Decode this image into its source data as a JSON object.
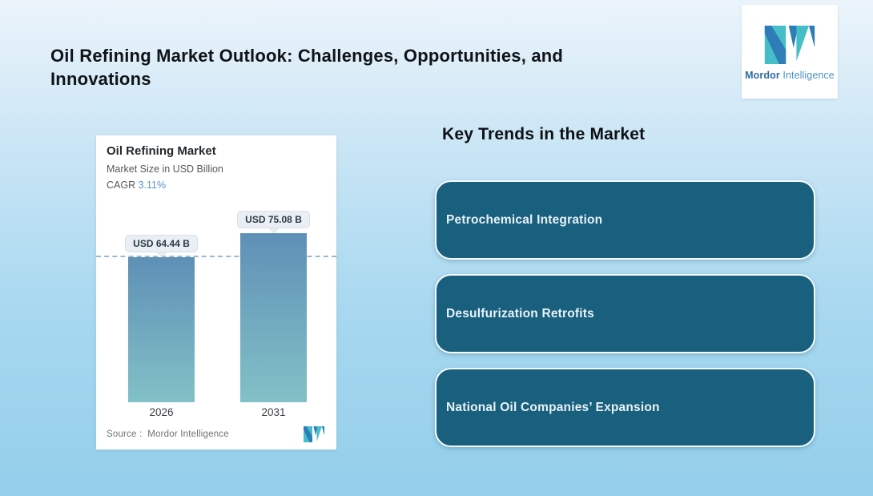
{
  "page": {
    "title": "Oil Refining Market Outlook: Challenges, Opportunities, and Innovations"
  },
  "brand": {
    "name_bold": "Mordor",
    "name_light": "Intelligence"
  },
  "chart": {
    "title": "Oil Refining Market",
    "subtitle": "Market Size in USD Billion",
    "cagr_label": "CAGR",
    "cagr_value": "3.11%",
    "source_label": "Source :",
    "source_value": "Mordor Intelligence",
    "bar_labels": [
      "USD 64.44 B",
      "USD 75.08 B"
    ]
  },
  "chart_data": {
    "type": "bar",
    "categories": [
      "2026",
      "2031"
    ],
    "values": [
      64.44,
      75.08
    ],
    "value_labels": [
      "USD 64.44 B",
      "USD 75.08 B"
    ],
    "title": "Oil Refining Market",
    "subtitle": "Market Size in USD Billion",
    "cagr": "3.11%",
    "xlabel": "",
    "ylabel": "Market Size in USD Billion",
    "ylim": [
      0,
      80
    ],
    "grid": false,
    "annotations": [
      "dashed reference line at 2026 value (64.44)"
    ],
    "source": "Mordor Intelligence"
  },
  "trends": {
    "heading": "Key Trends in the Market",
    "items": [
      {
        "label": "Petrochemical Integration"
      },
      {
        "label": "Desulfurization Retrofits"
      },
      {
        "label": "National Oil Companies’ Expansion"
      }
    ]
  },
  "colors": {
    "accent_blue": "#5D92C6",
    "bar_gradient_top": "#5E90B6",
    "bar_gradient_bottom": "#82C1C7",
    "trend_card_bg": "#19607F",
    "logo_teal": "#45BEC8",
    "logo_blue": "#2E7CB8",
    "background_top": "#ECF4FB",
    "background_bottom": "#94CEEA"
  }
}
